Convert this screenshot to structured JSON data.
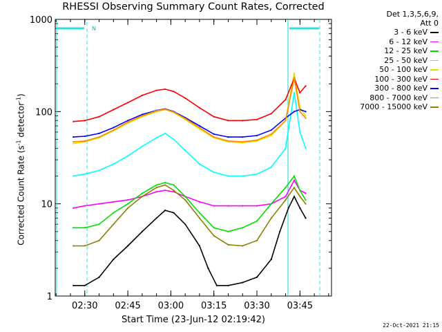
{
  "chart_data": {
    "type": "line",
    "title": "RHESSI Observing Summary Count Rates, Corrected",
    "xlabel": "Start Time (23-Jun-12 02:19:42)",
    "ylabel_main": "Corrected Count Rate (s",
    "ylabel_sup1": "-1",
    "ylabel_mid": " detector",
    "ylabel_sup2": "-1",
    "ylabel_end": ")",
    "yscale": "log",
    "ylim": [
      1,
      1000
    ],
    "xlim": [
      "02:19:42",
      "03:56:00"
    ],
    "x_ticks": [
      "02:30",
      "02:45",
      "03:00",
      "03:15",
      "03:30",
      "03:45"
    ],
    "y_ticks": [
      "1",
      "10",
      "100",
      "1000"
    ],
    "legend_header": [
      "Det 1,3,5,6,9,",
      "Att 0"
    ],
    "legend_position": "right",
    "annotation_n": "N",
    "timestamp": "22-Oct-2021 21:15",
    "series": [
      {
        "name": "3 - 6 keV",
        "color": "#000000",
        "x": [
          "02:26",
          "02:30",
          "02:35",
          "02:40",
          "02:45",
          "02:50",
          "02:55",
          "02:58",
          "03:01",
          "03:05",
          "03:10",
          "03:13",
          "03:16",
          "03:20",
          "03:25",
          "03:30",
          "03:35",
          "03:38",
          "03:41",
          "03:43",
          "03:45",
          "03:47"
        ],
        "values": [
          1.3,
          1.3,
          1.6,
          2.5,
          3.5,
          5,
          7,
          8.5,
          8,
          6,
          3.5,
          2,
          1.3,
          1.3,
          1.4,
          1.6,
          2.5,
          5,
          9,
          12,
          9,
          7
        ]
      },
      {
        "name": "6 - 12 keV",
        "color": "#ff00ff",
        "x": [
          "02:26",
          "02:30",
          "02:35",
          "02:40",
          "02:45",
          "02:50",
          "02:55",
          "02:58",
          "03:01",
          "03:05",
          "03:10",
          "03:15",
          "03:20",
          "03:25",
          "03:30",
          "03:35",
          "03:40",
          "03:43",
          "03:45",
          "03:47"
        ],
        "values": [
          9,
          9.5,
          10,
          10.5,
          11,
          12,
          13.5,
          14,
          13.5,
          12,
          10.5,
          9.5,
          9.5,
          9.5,
          9.5,
          10,
          12,
          18,
          14,
          13
        ]
      },
      {
        "name": "12 - 25 keV",
        "color": "#00e000",
        "x": [
          "02:26",
          "02:30",
          "02:35",
          "02:40",
          "02:45",
          "02:50",
          "02:55",
          "02:58",
          "03:01",
          "03:05",
          "03:10",
          "03:15",
          "03:20",
          "03:25",
          "03:30",
          "03:35",
          "03:40",
          "03:43",
          "03:45",
          "03:47"
        ],
        "values": [
          5.5,
          5.5,
          6,
          8,
          10,
          13,
          16,
          17,
          16,
          12,
          8,
          5.5,
          5,
          5.5,
          6.5,
          10,
          15,
          20,
          14,
          11
        ]
      },
      {
        "name": "25 - 50 keV",
        "color": "#00ffff",
        "x": [
          "02:26",
          "02:30",
          "02:35",
          "02:40",
          "02:45",
          "02:50",
          "02:55",
          "02:58",
          "03:01",
          "03:05",
          "03:10",
          "03:15",
          "03:20",
          "03:25",
          "03:30",
          "03:35",
          "03:40",
          "03:43",
          "03:45",
          "03:47"
        ],
        "values": [
          20,
          21,
          23,
          27,
          33,
          42,
          52,
          58,
          50,
          38,
          27,
          22,
          20,
          20,
          21,
          25,
          40,
          160,
          60,
          40
        ]
      },
      {
        "name": "50 - 100 keV",
        "color": "#e0e000",
        "x": [
          "02:26",
          "02:30",
          "02:35",
          "02:40",
          "02:45",
          "02:50",
          "02:55",
          "02:58",
          "03:01",
          "03:05",
          "03:10",
          "03:15",
          "03:20",
          "03:25",
          "03:30",
          "03:35",
          "03:40",
          "03:43",
          "03:45",
          "03:47"
        ],
        "values": [
          45,
          47,
          52,
          62,
          75,
          88,
          100,
          105,
          98,
          82,
          65,
          52,
          47,
          46,
          48,
          55,
          80,
          260,
          110,
          90
        ]
      },
      {
        "name": "100 - 300 keV",
        "color": "#ff0000",
        "x": [
          "02:26",
          "02:30",
          "02:35",
          "02:40",
          "02:45",
          "02:50",
          "02:55",
          "02:58",
          "03:01",
          "03:05",
          "03:10",
          "03:15",
          "03:20",
          "03:25",
          "03:30",
          "03:35",
          "03:40",
          "03:43",
          "03:45",
          "03:47"
        ],
        "values": [
          78,
          80,
          88,
          105,
          125,
          150,
          170,
          175,
          165,
          140,
          110,
          88,
          80,
          80,
          82,
          95,
          135,
          230,
          160,
          190
        ]
      },
      {
        "name": "300 - 800 keV",
        "color": "#0000ff",
        "x": [
          "02:26",
          "02:30",
          "02:35",
          "02:40",
          "02:45",
          "02:50",
          "02:55",
          "02:58",
          "03:01",
          "03:05",
          "03:10",
          "03:15",
          "03:20",
          "03:25",
          "03:30",
          "03:35",
          "03:40",
          "03:43",
          "03:45",
          "03:47"
        ],
        "values": [
          53,
          54,
          58,
          67,
          80,
          93,
          103,
          107,
          100,
          86,
          70,
          57,
          53,
          53,
          55,
          63,
          85,
          100,
          105,
          100
        ]
      },
      {
        "name": "800 - 7000 keV",
        "color": "#ff8c00",
        "x": [
          "02:26",
          "02:30",
          "02:35",
          "02:40",
          "02:45",
          "02:50",
          "02:55",
          "02:58",
          "03:01",
          "03:05",
          "03:10",
          "03:15",
          "03:20",
          "03:25",
          "03:30",
          "03:35",
          "03:40",
          "03:43",
          "03:45",
          "03:47"
        ],
        "values": [
          47,
          48,
          53,
          63,
          77,
          90,
          102,
          106,
          99,
          84,
          67,
          53,
          48,
          47,
          49,
          57,
          80,
          230,
          100,
          85
        ]
      },
      {
        "name": "7000 - 15000 keV",
        "color": "#8b8000",
        "x": [
          "02:26",
          "02:30",
          "02:35",
          "02:40",
          "02:45",
          "02:50",
          "02:55",
          "02:58",
          "03:01",
          "03:05",
          "03:10",
          "03:15",
          "03:20",
          "03:25",
          "03:30",
          "03:35",
          "03:40",
          "03:43",
          "03:45",
          "03:47"
        ],
        "values": [
          3.5,
          3.5,
          4,
          6,
          9,
          12,
          15,
          16,
          14,
          11,
          7,
          4.5,
          3.6,
          3.5,
          4,
          7,
          11,
          15,
          12,
          10
        ]
      }
    ]
  }
}
